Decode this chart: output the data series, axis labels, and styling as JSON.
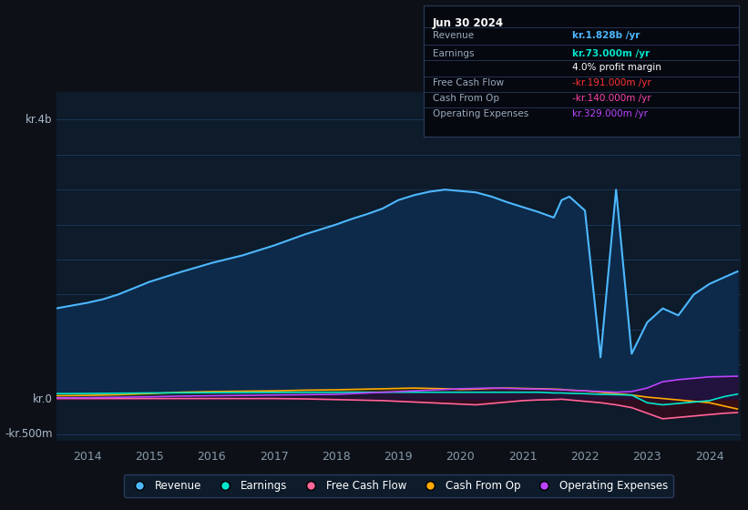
{
  "background_color": "#0d1117",
  "plot_bg_color": "#0d1b2a",
  "grid_color": "#1e3a5f",
  "title_box": {
    "header": "Jun 30 2024",
    "rows": [
      {
        "label": "Revenue",
        "value": "kr.1.828b /yr",
        "value_color": "#4db8ff"
      },
      {
        "label": "Earnings",
        "value": "kr.73.000m /yr",
        "value_color": "#00e5cc"
      },
      {
        "label": "",
        "value": "4.0% profit margin",
        "value_color": "#ffffff"
      },
      {
        "label": "Free Cash Flow",
        "value": "-kr.191.000m /yr",
        "value_color": "#ff3333"
      },
      {
        "label": "Cash From Op",
        "value": "-kr.140.000m /yr",
        "value_color": "#ff44aa"
      },
      {
        "label": "Operating Expenses",
        "value": "kr.329.000m /yr",
        "value_color": "#bb44ff"
      }
    ]
  },
  "ylabel_top": "kr.4b",
  "ylabel_zero": "kr.0",
  "ylabel_neg": "-kr.500m",
  "ylim": [
    -600,
    4400
  ],
  "legend": [
    {
      "label": "Revenue",
      "color": "#4db8ff"
    },
    {
      "label": "Earnings",
      "color": "#00e5cc"
    },
    {
      "label": "Free Cash Flow",
      "color": "#ff6699"
    },
    {
      "label": "Cash From Op",
      "color": "#ffaa00"
    },
    {
      "label": "Operating Expenses",
      "color": "#bb44ff"
    }
  ],
  "years": [
    2013.5,
    2014.0,
    2014.25,
    2014.5,
    2015.0,
    2015.5,
    2016.0,
    2016.5,
    2017.0,
    2017.5,
    2018.0,
    2018.25,
    2018.5,
    2018.75,
    2019.0,
    2019.25,
    2019.5,
    2019.75,
    2020.0,
    2020.25,
    2020.5,
    2020.75,
    2021.0,
    2021.25,
    2021.5,
    2021.625,
    2021.75,
    2022.0,
    2022.25,
    2022.5,
    2022.75,
    2023.0,
    2023.25,
    2023.5,
    2023.75,
    2024.0,
    2024.25,
    2024.45
  ],
  "revenue": [
    1300,
    1380,
    1430,
    1500,
    1680,
    1820,
    1950,
    2060,
    2200,
    2360,
    2500,
    2580,
    2650,
    2730,
    2850,
    2920,
    2970,
    3000,
    2980,
    2960,
    2900,
    2820,
    2750,
    2680,
    2600,
    2850,
    2900,
    2700,
    600,
    3000,
    650,
    1100,
    1300,
    1200,
    1500,
    1650,
    1750,
    1828
  ],
  "earnings": [
    80,
    82,
    84,
    86,
    90,
    92,
    94,
    96,
    98,
    100,
    100,
    100,
    100,
    100,
    100,
    100,
    100,
    100,
    100,
    100,
    100,
    100,
    100,
    100,
    90,
    90,
    85,
    80,
    70,
    65,
    60,
    -50,
    -80,
    -60,
    -40,
    -20,
    40,
    73
  ],
  "free_cash_flow": [
    10,
    10,
    10,
    10,
    10,
    10,
    10,
    10,
    10,
    5,
    -5,
    -10,
    -15,
    -20,
    -30,
    -40,
    -50,
    -60,
    -70,
    -80,
    -60,
    -40,
    -20,
    -10,
    -5,
    0,
    -10,
    -30,
    -50,
    -80,
    -120,
    -200,
    -280,
    -260,
    -240,
    -220,
    -200,
    -191
  ],
  "cash_from_op": [
    50,
    55,
    60,
    65,
    80,
    100,
    110,
    115,
    120,
    130,
    135,
    140,
    145,
    150,
    155,
    160,
    155,
    150,
    140,
    145,
    155,
    160,
    155,
    150,
    145,
    140,
    130,
    120,
    100,
    80,
    60,
    30,
    10,
    -10,
    -30,
    -50,
    -100,
    -140
  ],
  "op_expenses": [
    20,
    22,
    25,
    28,
    35,
    45,
    50,
    55,
    60,
    65,
    70,
    80,
    90,
    100,
    110,
    120,
    130,
    140,
    150,
    155,
    160,
    155,
    150,
    145,
    140,
    135,
    130,
    120,
    110,
    100,
    110,
    160,
    250,
    280,
    300,
    320,
    325,
    329
  ]
}
